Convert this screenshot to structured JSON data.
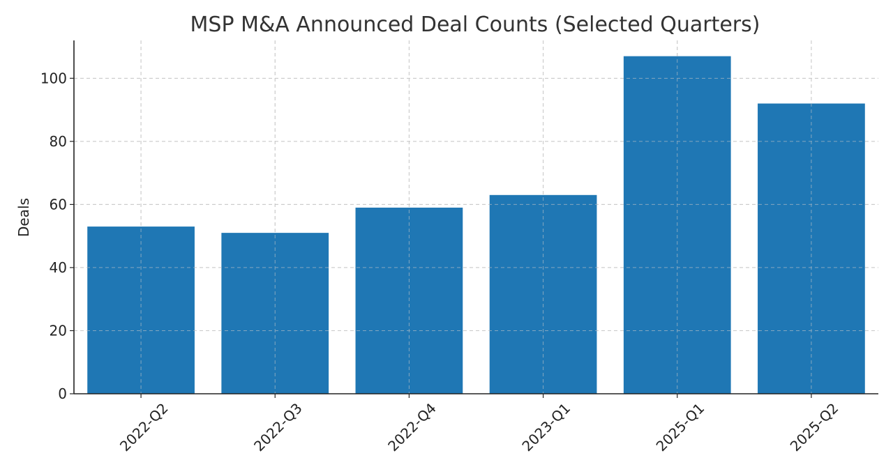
{
  "chart_data": {
    "type": "bar",
    "title": "MSP M&A Announced Deal Counts (Selected Quarters)",
    "xlabel": "",
    "ylabel": "Deals",
    "categories": [
      "2022-Q2",
      "2022-Q3",
      "2022-Q4",
      "2023-Q1",
      "2025-Q1",
      "2025-Q2"
    ],
    "values": [
      53,
      51,
      59,
      63,
      107,
      92
    ],
    "ylim": [
      0,
      112
    ],
    "yticks": [
      0,
      20,
      40,
      60,
      80,
      100
    ],
    "grid": true,
    "bar_color": "#1f77b4",
    "xtick_rotation": -45
  }
}
